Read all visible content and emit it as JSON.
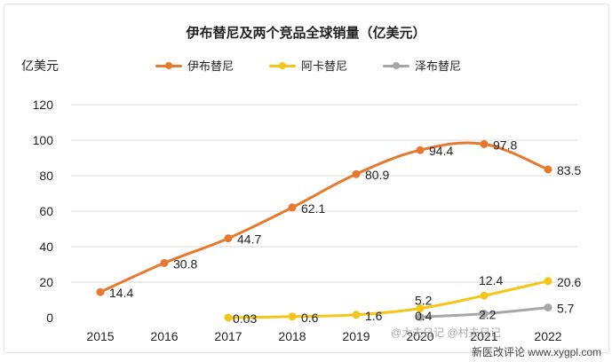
{
  "chart_data": {
    "type": "line",
    "title": "伊布替尼及两个竞品全球销量（亿美元）",
    "ylabel": "亿美元",
    "xlabel": "",
    "categories": [
      "2015",
      "2016",
      "2017",
      "2018",
      "2019",
      "2020",
      "2021",
      "2022"
    ],
    "ylim": [
      0,
      120
    ],
    "yticks": [
      "120",
      "100",
      "80",
      "60",
      "40",
      "20",
      "0"
    ],
    "legend_position": "top-center",
    "grid": "horizontal",
    "series": [
      {
        "name": "伊布替尼",
        "color": "#E8782E",
        "values": [
          14.4,
          30.8,
          44.7,
          62.1,
          80.9,
          94.4,
          97.8,
          83.5
        ],
        "labels": [
          "14.4",
          "30.8",
          "44.7",
          "62.1",
          "80.9",
          "94.4",
          "97.8",
          "83.5"
        ]
      },
      {
        "name": "阿卡替尼",
        "color": "#F5C518",
        "values": [
          null,
          null,
          0.03,
          0.6,
          1.6,
          5.2,
          12.4,
          20.6
        ],
        "labels": [
          "",
          "",
          "0.03",
          "0.6",
          "1.6",
          "5.2",
          "12.4",
          "20.6"
        ]
      },
      {
        "name": "泽布替尼",
        "color": "#A6A6A6",
        "values": [
          null,
          null,
          null,
          null,
          null,
          0.4,
          2.2,
          5.7
        ],
        "labels": [
          "",
          "",
          "",
          "",
          "",
          "0.4",
          "2.2",
          "5.7"
        ]
      }
    ]
  },
  "watermark": {
    "bottom_text": "新医改评论 www.xygpl.com",
    "overlay_text": "@大夫日记 @村夫日记"
  }
}
